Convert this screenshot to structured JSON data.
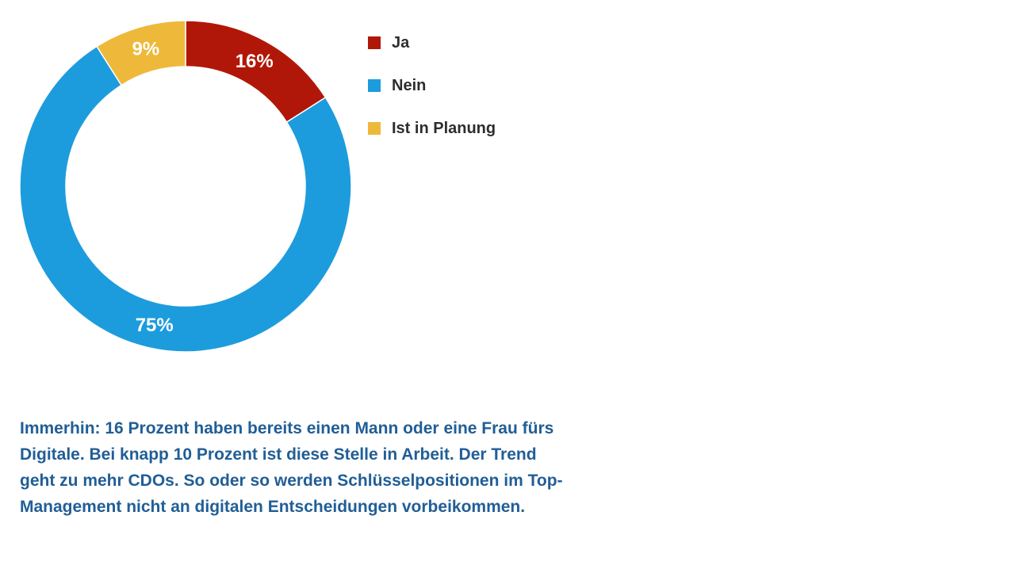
{
  "page": {
    "background": "#ffffff"
  },
  "chart_data": {
    "type": "pie",
    "variant": "donut",
    "title": "",
    "direction": "clockwise",
    "start_angle_deg": 0,
    "unit": "%",
    "total": 100,
    "slices": [
      {
        "label": "Ja",
        "value": 16,
        "data_label": "16%",
        "color": "#b11708"
      },
      {
        "label": "Nein",
        "value": 75,
        "data_label": "75%",
        "color": "#1d9cdd"
      },
      {
        "label": "Ist in Planung",
        "value": 9,
        "data_label": "9%",
        "color": "#eeb93a"
      }
    ],
    "data_label_color": "#ffffff",
    "slice_separator_color": "#ffffff",
    "legend_position": "right"
  },
  "legend": {
    "text_color": "#2d2d2d"
  },
  "commentary": {
    "color": "#215e96",
    "lines": [
      "Immerhin: 16 Prozent haben bereits einen Mann oder eine Frau fürs",
      "Digitale. Bei knapp 10 Prozent ist diese Stelle in Arbeit. Der Trend",
      "geht zu mehr CDOs. So oder so werden Schlüsselpositionen im Top-",
      "Management nicht an digitalen Entscheidungen vorbeikommen."
    ]
  }
}
